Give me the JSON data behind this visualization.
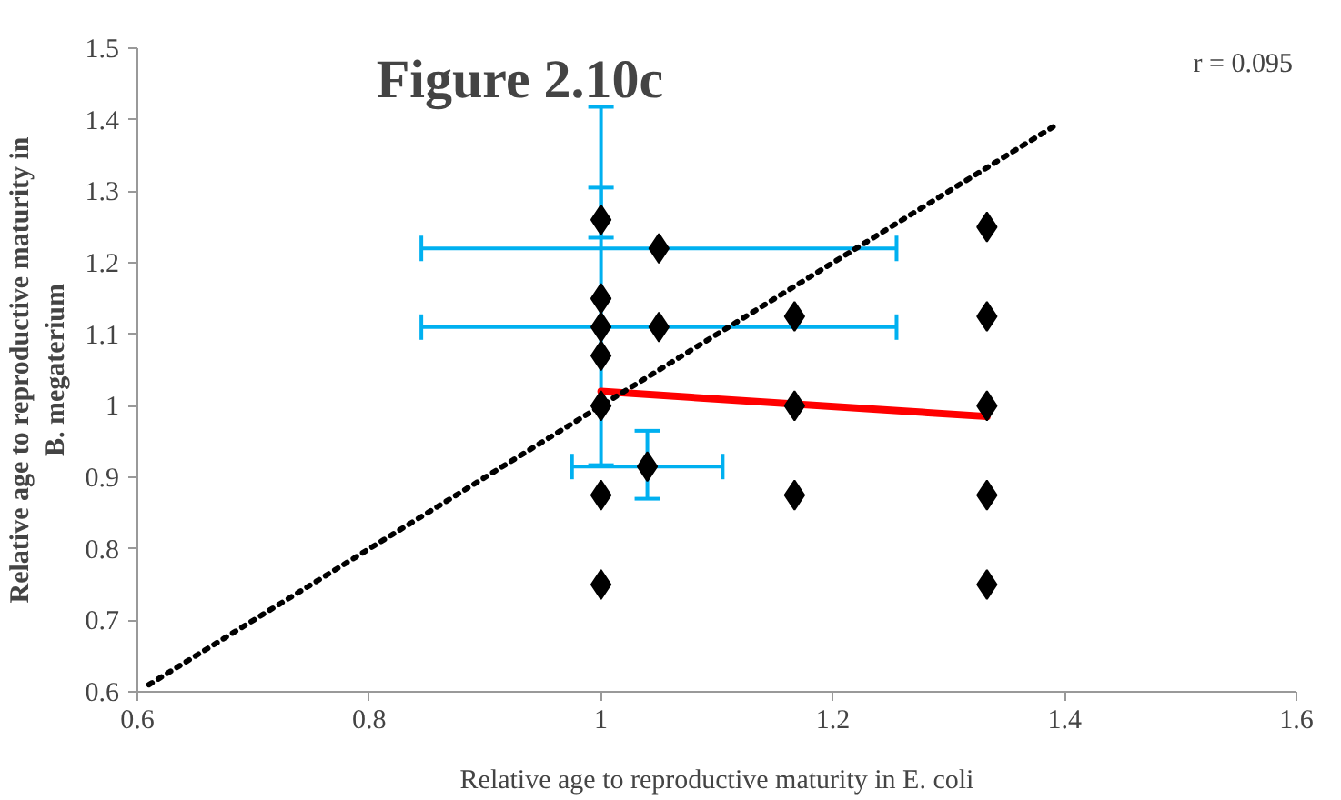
{
  "chart_data": {
    "type": "scatter",
    "title": "Figure 2.10c",
    "xlabel": "Relative age to reproductive maturity in E. coli",
    "ylabel": "Relative age to reproductive maturity in\nB. megaterium",
    "annotations": [
      "r = 0.095"
    ],
    "xlim": [
      0.6,
      1.6
    ],
    "xticks": [
      0.6,
      0.8,
      1,
      1.2,
      1.4,
      1.6
    ],
    "ylim": [
      0.6,
      1.5
    ],
    "yticks": [
      0.6,
      0.7,
      0.8,
      0.9,
      1,
      1.1,
      1.2,
      1.3,
      1.4,
      1.5
    ],
    "grid": false,
    "series": [
      {
        "color": "#000000",
        "marker": "diamond",
        "x": [
          1,
          1,
          1,
          1,
          1,
          1,
          1,
          1.05,
          1.05,
          1.04,
          1.167,
          1.167,
          1.167,
          1.333,
          1.333,
          1.333,
          1.333,
          1.333
        ],
        "values": [
          1.26,
          1.15,
          1.11,
          1.07,
          1.0,
          0.875,
          0.75,
          1.22,
          1.11,
          0.915,
          1.125,
          1.0,
          0.875,
          1.25,
          1.125,
          1.0,
          0.875,
          0.75
        ],
        "errors": [
          [
            1.235,
            1.305
          ],
          [
            0.917,
            1.418
          ],
          null,
          null,
          null,
          null,
          null,
          null,
          null,
          [
            0.87,
            0.965
          ],
          null,
          null,
          null,
          null,
          null,
          null,
          null,
          null
        ],
        "xerrors": [
          null,
          null,
          null,
          null,
          null,
          null,
          null,
          [
            0.845,
            1.255
          ],
          [
            0.845,
            1.255
          ],
          [
            0.975,
            1.105
          ],
          null,
          null,
          null,
          null,
          null,
          null,
          null,
          null
        ]
      },
      {
        "type": "line",
        "color": "#ff0000",
        "line_style": "solid",
        "x": [
          1,
          1.333
        ],
        "values": [
          1.02,
          0.985
        ]
      },
      {
        "type": "line",
        "color": "#000000",
        "line_style": "dotted",
        "x": [
          0.61,
          1.39
        ],
        "values": [
          0.61,
          1.39
        ]
      }
    ]
  }
}
